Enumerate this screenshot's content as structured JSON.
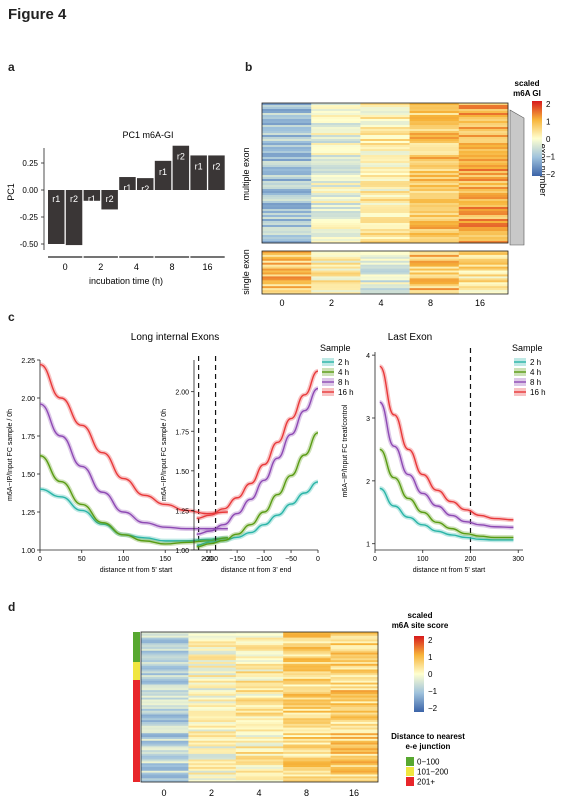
{
  "figure_title": "Figure 4",
  "panels": {
    "a": "a",
    "b": "b",
    "c": "c",
    "d": "d"
  },
  "colors": {
    "bar": "#3a3636",
    "h2": "#2bb5a8",
    "h4": "#5a9c14",
    "h8": "#8e4ab4",
    "h16": "#e8393a"
  },
  "panel_c": {
    "title": "Long internal Exons",
    "legend_title": "Sample",
    "legend": [
      "2 h",
      "4 h",
      "8 h",
      "16 h"
    ],
    "last_exon_title": "Last Exon",
    "left_ylabel": "m6A−IP/Input FC sample / 0h",
    "left_xlabel": "distance nt from 5' start",
    "mid_ylabel": "m6A−IP/Input FC sample / 0h",
    "mid_xlabel": "distance nt from 3' end",
    "right_ylabel": "m6A−IP/Input FC treat/control",
    "right_xlabel": "distance nt from 5' start"
  },
  "panel_b": {
    "legend_title_1": "scaled",
    "legend_title_2": "m6A GI",
    "legend_ticks": [
      "2",
      "1",
      "0",
      "−1",
      "−2"
    ],
    "row_label_top": "multiple exon",
    "row_label_bottom": "single exon",
    "side_label": "exon number",
    "columns": [
      "0",
      "2",
      "4",
      "8",
      "16"
    ]
  },
  "panel_d": {
    "legend_title_1": "scaled",
    "legend_title_2": "m6A site score",
    "legend_ticks": [
      "2",
      "1",
      "0",
      "−1",
      "−2"
    ],
    "dist_title_1": "Distance to nearest",
    "dist_title_2": "e-e junction",
    "dist_legend": [
      "0−100",
      "101−200",
      "201+"
    ],
    "dist_colors": [
      "#58a830",
      "#f0e640",
      "#e8262a"
    ],
    "columns": [
      "0",
      "2",
      "4",
      "8",
      "16"
    ]
  },
  "chart_data": [
    {
      "type": "bar",
      "title": "PC1 m6A-GI",
      "ylabel": "PC1",
      "xlabel": "incubation time (h)",
      "ylim": [
        -0.55,
        0.5
      ],
      "yticks": [
        "0.25",
        "0.00",
        "-0.25",
        "-0.50"
      ],
      "groups": [
        "0",
        "2",
        "4",
        "8",
        "16"
      ],
      "bar_labels": [
        "r1",
        "r2",
        "r1",
        "r2",
        "r1",
        "r2",
        "r1",
        "r2",
        "r1",
        "r2"
      ],
      "values": [
        -0.5,
        -0.51,
        -0.1,
        -0.18,
        0.12,
        0.11,
        0.27,
        0.41,
        0.32,
        0.32
      ]
    },
    {
      "type": "line",
      "panel": "c-left",
      "xlim": [
        0,
        230
      ],
      "ylim": [
        1.0,
        2.25
      ],
      "xticks": [
        "0",
        "50",
        "100",
        "150",
        "200"
      ],
      "yticks": [
        "2.25",
        "2.00",
        "1.75",
        "1.50",
        "1.25",
        "1.00"
      ],
      "vline": 190,
      "x": [
        0,
        25,
        50,
        75,
        100,
        125,
        150,
        175,
        200,
        225
      ],
      "series": [
        {
          "name": "2 h",
          "values": [
            1.4,
            1.35,
            1.26,
            1.17,
            1.1,
            1.08,
            1.06,
            1.06,
            1.07,
            1.08
          ]
        },
        {
          "name": "4 h",
          "values": [
            1.62,
            1.45,
            1.3,
            1.18,
            1.1,
            1.06,
            1.04,
            1.05,
            1.06,
            1.08
          ]
        },
        {
          "name": "8 h",
          "values": [
            1.96,
            1.75,
            1.55,
            1.38,
            1.25,
            1.18,
            1.15,
            1.14,
            1.14,
            1.14
          ]
        },
        {
          "name": "16 h",
          "values": [
            2.22,
            2.0,
            1.82,
            1.64,
            1.47,
            1.36,
            1.3,
            1.26,
            1.24,
            1.25
          ]
        }
      ]
    },
    {
      "type": "line",
      "panel": "c-middle",
      "xlim": [
        -230,
        0
      ],
      "ylim": [
        1.0,
        2.2
      ],
      "xticks": [
        "−200",
        "−150",
        "−100",
        "−50",
        "0"
      ],
      "yticks": [
        "2.00",
        "1.75",
        "1.50",
        "1.25",
        "1.00"
      ],
      "vline": -190,
      "x": [
        -225,
        -200,
        -175,
        -150,
        -125,
        -100,
        -75,
        -50,
        -25,
        0
      ],
      "series": [
        {
          "name": "2 h",
          "values": [
            1.03,
            1.05,
            1.06,
            1.08,
            1.11,
            1.16,
            1.22,
            1.29,
            1.36,
            1.43
          ]
        },
        {
          "name": "4 h",
          "values": [
            1.02,
            1.04,
            1.06,
            1.1,
            1.16,
            1.24,
            1.35,
            1.47,
            1.6,
            1.74
          ]
        },
        {
          "name": "8 h",
          "values": [
            1.1,
            1.12,
            1.16,
            1.23,
            1.32,
            1.44,
            1.58,
            1.73,
            1.88,
            2.02
          ]
        },
        {
          "name": "16 h",
          "values": [
            1.2,
            1.22,
            1.26,
            1.33,
            1.42,
            1.54,
            1.68,
            1.83,
            1.98,
            2.13
          ]
        }
      ]
    },
    {
      "type": "line",
      "panel": "c-right",
      "xlim": [
        0,
        310
      ],
      "ylim": [
        0.9,
        4.05
      ],
      "xticks": [
        "0",
        "100",
        "200",
        "300"
      ],
      "yticks": [
        "4",
        "3",
        "2",
        "1"
      ],
      "vline": 200,
      "x": [
        10,
        40,
        70,
        100,
        130,
        160,
        190,
        220,
        250,
        290
      ],
      "series": [
        {
          "name": "2 h",
          "values": [
            1.88,
            1.6,
            1.42,
            1.3,
            1.2,
            1.14,
            1.1,
            1.07,
            1.06,
            1.06
          ]
        },
        {
          "name": "4 h",
          "values": [
            2.5,
            2.05,
            1.72,
            1.5,
            1.34,
            1.24,
            1.16,
            1.12,
            1.1,
            1.1
          ]
        },
        {
          "name": "8 h",
          "values": [
            3.25,
            2.55,
            2.1,
            1.8,
            1.6,
            1.45,
            1.35,
            1.3,
            1.27,
            1.26
          ]
        },
        {
          "name": "16 h",
          "values": [
            3.82,
            3.05,
            2.5,
            2.1,
            1.85,
            1.67,
            1.54,
            1.45,
            1.4,
            1.38
          ]
        }
      ]
    },
    {
      "type": "heatmap",
      "panel": "b",
      "columns": [
        "0",
        "2",
        "4",
        "8",
        "16"
      ],
      "column_means_multiple": [
        -0.9,
        -0.2,
        0.2,
        0.7,
        1.0
      ],
      "column_means_single": [
        0.8,
        0.2,
        -0.4,
        0.7,
        0.4
      ]
    },
    {
      "type": "heatmap",
      "panel": "d",
      "columns": [
        "0",
        "2",
        "4",
        "8",
        "16"
      ],
      "column_means": [
        -0.7,
        0.0,
        0.2,
        0.5,
        0.6
      ]
    }
  ]
}
